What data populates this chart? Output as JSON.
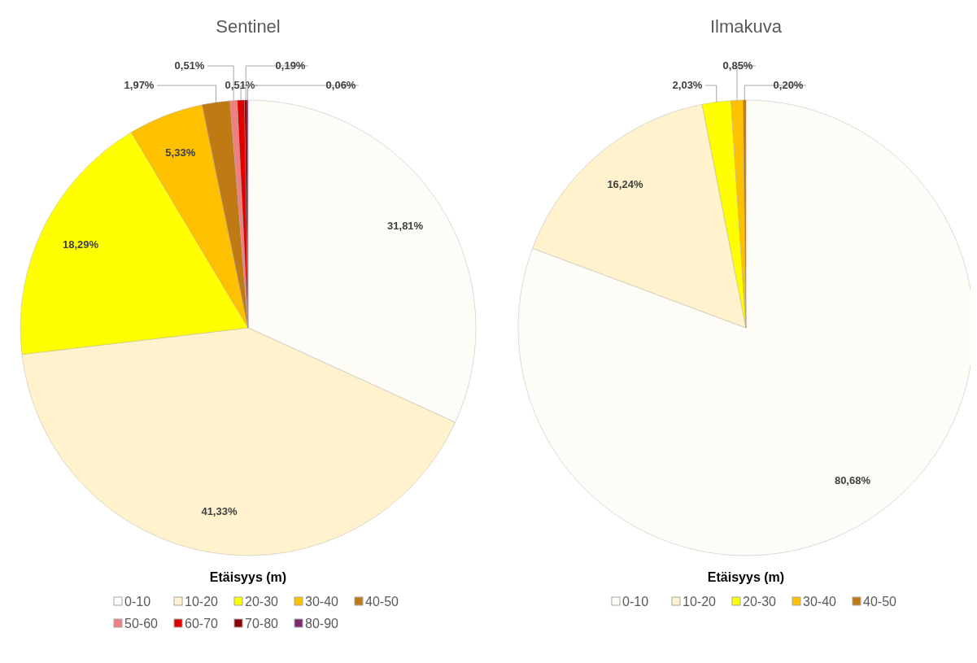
{
  "chart_data": [
    {
      "type": "pie",
      "title": "Sentinel",
      "legend_title": "Etäisyys (m)",
      "legend": "bottom",
      "categories": [
        "0-10",
        "10-20",
        "20-30",
        "30-40",
        "40-50",
        "50-60",
        "60-70",
        "70-80",
        "80-90"
      ],
      "values": [
        31.81,
        41.33,
        18.29,
        5.33,
        1.97,
        0.51,
        0.51,
        0.19,
        0.06
      ],
      "value_labels": [
        "31,81%",
        "41,33%",
        "18,29%",
        "5,33%",
        "1,97%",
        "0,51%",
        "0,51%",
        "0,19%",
        "0,06%"
      ],
      "colors": [
        "#fdfcf7",
        "#fff2cc",
        "#ffff00",
        "#ffc000",
        "#c07a14",
        "#f08080",
        "#e00000",
        "#8b0000",
        "#7b2c6e"
      ]
    },
    {
      "type": "pie",
      "title": "Ilmakuva",
      "legend_title": "Etäisyys (m)",
      "legend": "bottom",
      "categories": [
        "0-10",
        "10-20",
        "20-30",
        "30-40",
        "40-50"
      ],
      "values": [
        80.68,
        16.24,
        2.03,
        0.85,
        0.2
      ],
      "value_labels": [
        "80,68%",
        "16,24%",
        "2,03%",
        "0,85%",
        "0,20%"
      ],
      "colors": [
        "#fdfcf7",
        "#fff2cc",
        "#ffff00",
        "#ffc000",
        "#c07a14"
      ]
    }
  ]
}
